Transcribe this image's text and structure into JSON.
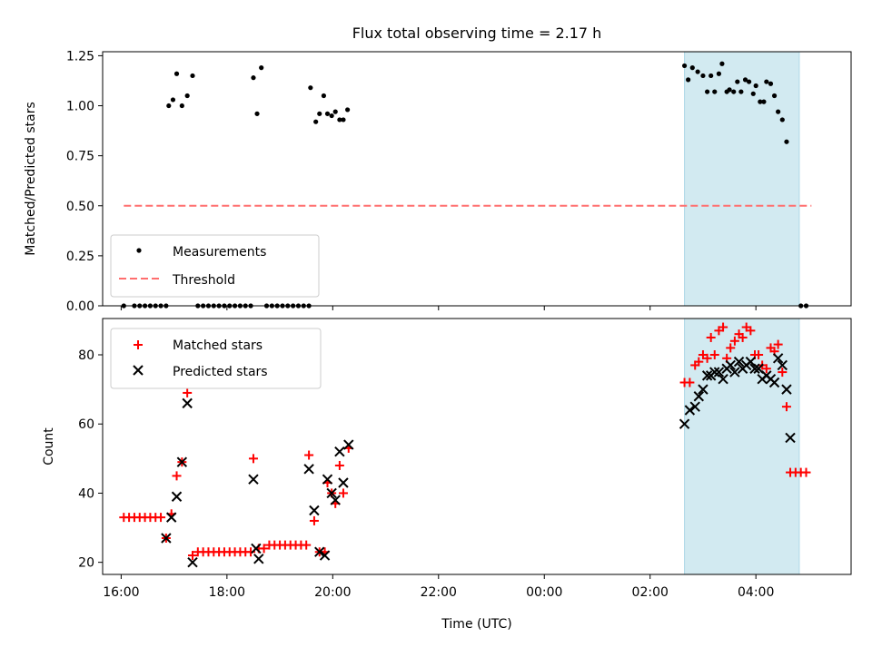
{
  "figure": {
    "title": "Flux total observing time = 2.17 h",
    "xlabel": "Time (UTC)",
    "x_ticks": [
      {
        "hour": 16,
        "label": "16:00"
      },
      {
        "hour": 18,
        "label": "18:00"
      },
      {
        "hour": 20,
        "label": "20:00"
      },
      {
        "hour": 22,
        "label": "22:00"
      },
      {
        "hour": 24,
        "label": "00:00"
      },
      {
        "hour": 26,
        "label": "02:00"
      },
      {
        "hour": 28,
        "label": "04:00"
      }
    ],
    "xlim_hours": [
      15.65,
      29.8
    ],
    "highlight_span_hours": [
      26.65,
      28.82
    ],
    "highlight_color": "#add8e6"
  },
  "chart_data": [
    {
      "type": "scatter",
      "ylabel": "Matched/Predicted stars",
      "ylim": [
        0,
        1.27
      ],
      "y_ticks": [
        {
          "value": 0,
          "label": "0.00"
        },
        {
          "value": 0.25,
          "label": "0.25"
        },
        {
          "value": 0.5,
          "label": "0.50"
        },
        {
          "value": 0.75,
          "label": "0.75"
        },
        {
          "value": 1.0,
          "label": "1.00"
        },
        {
          "value": 1.25,
          "label": "1.25"
        }
      ],
      "legend": {
        "placement": "lower-left",
        "measurements_label": "Measurements",
        "threshold_label": "Threshold"
      },
      "threshold": {
        "value": 0.5,
        "x_hours": [
          16.05,
          29.05
        ],
        "color": "#ff6e6e"
      },
      "series": [
        {
          "name": "Measurements",
          "color": "#000000",
          "points": [
            [
              16.05,
              0
            ],
            [
              16.25,
              0
            ],
            [
              16.35,
              0
            ],
            [
              16.45,
              0
            ],
            [
              16.55,
              0
            ],
            [
              16.65,
              0
            ],
            [
              16.75,
              0
            ],
            [
              16.85,
              0
            ],
            [
              16.9,
              1.0
            ],
            [
              16.98,
              1.03
            ],
            [
              17.05,
              1.16
            ],
            [
              17.15,
              1.0
            ],
            [
              17.25,
              1.05
            ],
            [
              17.35,
              1.15
            ],
            [
              17.45,
              0
            ],
            [
              17.55,
              0
            ],
            [
              17.65,
              0
            ],
            [
              17.75,
              0
            ],
            [
              17.85,
              0
            ],
            [
              17.95,
              0
            ],
            [
              18.05,
              0
            ],
            [
              18.15,
              0
            ],
            [
              18.25,
              0
            ],
            [
              18.35,
              0
            ],
            [
              18.45,
              0
            ],
            [
              18.5,
              1.14
            ],
            [
              18.57,
              0.96
            ],
            [
              18.65,
              1.19
            ],
            [
              18.75,
              0
            ],
            [
              18.85,
              0
            ],
            [
              18.95,
              0
            ],
            [
              19.05,
              0
            ],
            [
              19.15,
              0
            ],
            [
              19.25,
              0
            ],
            [
              19.35,
              0
            ],
            [
              19.45,
              0
            ],
            [
              19.55,
              0
            ],
            [
              19.58,
              1.09
            ],
            [
              19.68,
              0.92
            ],
            [
              19.75,
              0.96
            ],
            [
              19.83,
              1.05
            ],
            [
              19.9,
              0.96
            ],
            [
              19.98,
              0.95
            ],
            [
              20.05,
              0.97
            ],
            [
              20.13,
              0.93
            ],
            [
              20.2,
              0.93
            ],
            [
              20.28,
              0.98
            ],
            [
              26.65,
              1.2
            ],
            [
              26.72,
              1.13
            ],
            [
              26.8,
              1.19
            ],
            [
              26.9,
              1.17
            ],
            [
              27.0,
              1.15
            ],
            [
              27.08,
              1.07
            ],
            [
              27.15,
              1.15
            ],
            [
              27.22,
              1.07
            ],
            [
              27.3,
              1.16
            ],
            [
              27.36,
              1.21
            ],
            [
              27.45,
              1.07
            ],
            [
              27.5,
              1.08
            ],
            [
              27.58,
              1.07
            ],
            [
              27.65,
              1.12
            ],
            [
              27.72,
              1.07
            ],
            [
              27.8,
              1.13
            ],
            [
              27.87,
              1.12
            ],
            [
              27.95,
              1.06
            ],
            [
              28.0,
              1.1
            ],
            [
              28.08,
              1.02
            ],
            [
              28.15,
              1.02
            ],
            [
              28.2,
              1.12
            ],
            [
              28.28,
              1.11
            ],
            [
              28.35,
              1.05
            ],
            [
              28.42,
              0.97
            ],
            [
              28.5,
              0.93
            ],
            [
              28.58,
              0.82
            ],
            [
              28.85,
              0
            ],
            [
              28.95,
              0
            ]
          ]
        }
      ]
    },
    {
      "type": "scatter",
      "ylabel": "Count",
      "ylim": [
        16.5,
        90.5
      ],
      "y_ticks": [
        {
          "value": 20,
          "label": "20"
        },
        {
          "value": 40,
          "label": "40"
        },
        {
          "value": 60,
          "label": "60"
        },
        {
          "value": 80,
          "label": "80"
        }
      ],
      "legend": {
        "placement": "upper-left"
      },
      "series": [
        {
          "name": "Matched stars",
          "marker": "plus",
          "color": "#ff0000",
          "points": [
            [
              16.05,
              33
            ],
            [
              16.15,
              33
            ],
            [
              16.25,
              33
            ],
            [
              16.35,
              33
            ],
            [
              16.45,
              33
            ],
            [
              16.55,
              33
            ],
            [
              16.65,
              33
            ],
            [
              16.75,
              33
            ],
            [
              16.85,
              27
            ],
            [
              16.95,
              34
            ],
            [
              17.05,
              45
            ],
            [
              17.15,
              49
            ],
            [
              17.25,
              69
            ],
            [
              17.35,
              22
            ],
            [
              17.45,
              23
            ],
            [
              17.55,
              23
            ],
            [
              17.65,
              23
            ],
            [
              17.75,
              23
            ],
            [
              17.85,
              23
            ],
            [
              17.95,
              23
            ],
            [
              18.05,
              23
            ],
            [
              18.15,
              23
            ],
            [
              18.25,
              23
            ],
            [
              18.35,
              23
            ],
            [
              18.45,
              23
            ],
            [
              18.5,
              50
            ],
            [
              18.6,
              24
            ],
            [
              18.7,
              24
            ],
            [
              18.8,
              25
            ],
            [
              18.9,
              25
            ],
            [
              19.0,
              25
            ],
            [
              19.1,
              25
            ],
            [
              19.2,
              25
            ],
            [
              19.3,
              25
            ],
            [
              19.4,
              25
            ],
            [
              19.5,
              25
            ],
            [
              19.55,
              51
            ],
            [
              19.65,
              32
            ],
            [
              19.75,
              23
            ],
            [
              19.85,
              23
            ],
            [
              19.9,
              43
            ],
            [
              19.98,
              40
            ],
            [
              20.05,
              37
            ],
            [
              20.13,
              48
            ],
            [
              20.2,
              40
            ],
            [
              20.3,
              53
            ],
            [
              26.65,
              72
            ],
            [
              26.75,
              72
            ],
            [
              26.85,
              77
            ],
            [
              26.92,
              78
            ],
            [
              27.0,
              80
            ],
            [
              27.08,
              79
            ],
            [
              27.15,
              85
            ],
            [
              27.22,
              80
            ],
            [
              27.3,
              87
            ],
            [
              27.38,
              88
            ],
            [
              27.45,
              79
            ],
            [
              27.52,
              82
            ],
            [
              27.6,
              84
            ],
            [
              27.68,
              86
            ],
            [
              27.75,
              85
            ],
            [
              27.82,
              88
            ],
            [
              27.9,
              87
            ],
            [
              27.98,
              80
            ],
            [
              28.05,
              80
            ],
            [
              28.12,
              77
            ],
            [
              28.2,
              76
            ],
            [
              28.28,
              82
            ],
            [
              28.35,
              81
            ],
            [
              28.42,
              83
            ],
            [
              28.5,
              75
            ],
            [
              28.58,
              65
            ],
            [
              28.65,
              46
            ],
            [
              28.75,
              46
            ],
            [
              28.85,
              46
            ],
            [
              28.95,
              46
            ]
          ]
        },
        {
          "name": "Predicted stars",
          "marker": "x",
          "color": "#000000",
          "points": [
            [
              16.85,
              27
            ],
            [
              16.95,
              33
            ],
            [
              17.05,
              39
            ],
            [
              17.15,
              49
            ],
            [
              17.25,
              66
            ],
            [
              17.35,
              20
            ],
            [
              18.5,
              44
            ],
            [
              18.6,
              21
            ],
            [
              18.55,
              24
            ],
            [
              19.55,
              47
            ],
            [
              19.65,
              35
            ],
            [
              19.75,
              23
            ],
            [
              19.85,
              22
            ],
            [
              19.9,
              44
            ],
            [
              19.98,
              40
            ],
            [
              20.05,
              38
            ],
            [
              20.13,
              52
            ],
            [
              20.2,
              43
            ],
            [
              20.3,
              54
            ],
            [
              26.65,
              60
            ],
            [
              26.75,
              64
            ],
            [
              26.85,
              65
            ],
            [
              26.92,
              68
            ],
            [
              27.0,
              70
            ],
            [
              27.08,
              74
            ],
            [
              27.15,
              74
            ],
            [
              27.22,
              75
            ],
            [
              27.3,
              75
            ],
            [
              27.38,
              73
            ],
            [
              27.45,
              76
            ],
            [
              27.52,
              77
            ],
            [
              27.6,
              75
            ],
            [
              27.68,
              78
            ],
            [
              27.75,
              76
            ],
            [
              27.82,
              77
            ],
            [
              27.9,
              78
            ],
            [
              27.98,
              76
            ],
            [
              28.05,
              76
            ],
            [
              28.12,
              73
            ],
            [
              28.2,
              74
            ],
            [
              28.28,
              73
            ],
            [
              28.35,
              72
            ],
            [
              28.42,
              79
            ],
            [
              28.5,
              77
            ],
            [
              28.58,
              70
            ],
            [
              28.65,
              56
            ]
          ]
        }
      ]
    }
  ]
}
